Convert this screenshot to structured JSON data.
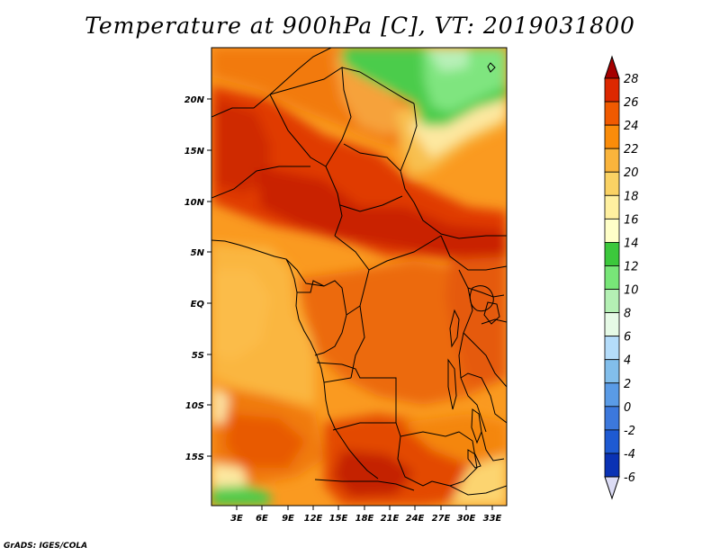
{
  "title": "Temperature at 900hPa [C], VT: 2019031800",
  "credit": "GrADS: IGES/COLA",
  "x_ticks": [
    "3E",
    "6E",
    "9E",
    "12E",
    "15E",
    "18E",
    "21E",
    "24E",
    "27E",
    "30E",
    "33E"
  ],
  "y_ticks": [
    "20N",
    "15N",
    "10N",
    "5N",
    "EQ",
    "5S",
    "10S",
    "15S"
  ],
  "colorbar": {
    "labels": [
      "28",
      "26",
      "24",
      "22",
      "20",
      "18",
      "16",
      "14",
      "12",
      "10",
      "8",
      "6",
      "4",
      "2",
      "0",
      "-2",
      "-4",
      "-6"
    ],
    "colors": [
      "#a50000",
      "#dc2800",
      "#f05a00",
      "#fa8c0a",
      "#fab43c",
      "#fad264",
      "#fff0a0",
      "#ffffc8",
      "#3cc83c",
      "#78e678",
      "#b4f0b4",
      "#e6fae6",
      "#b4dcfa",
      "#82beeb",
      "#5a9be6",
      "#3c78dc",
      "#1e5ad2",
      "#0a32b4",
      "#000a78",
      "#dcdcf5"
    ]
  }
}
